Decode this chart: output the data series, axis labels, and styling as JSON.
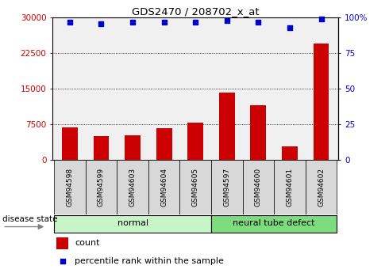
{
  "title": "GDS2470 / 208702_x_at",
  "samples": [
    "GSM94598",
    "GSM94599",
    "GSM94603",
    "GSM94604",
    "GSM94605",
    "GSM94597",
    "GSM94600",
    "GSM94601",
    "GSM94602"
  ],
  "counts": [
    6800,
    5000,
    5200,
    6600,
    7800,
    14200,
    11500,
    2800,
    24500
  ],
  "percentile_ranks": [
    97,
    96,
    97,
    97,
    97,
    98,
    97,
    93,
    99
  ],
  "groups": [
    "normal",
    "normal",
    "normal",
    "normal",
    "normal",
    "neural tube defect",
    "neural tube defect",
    "neural tube defect",
    "neural tube defect"
  ],
  "group_colors": [
    "#c8f5c8",
    "#7ddc7d"
  ],
  "bar_color": "#cc0000",
  "dot_color": "#0000cc",
  "left_ylim": [
    0,
    30000
  ],
  "right_ylim": [
    0,
    100
  ],
  "left_yticks": [
    0,
    7500,
    15000,
    22500,
    30000
  ],
  "right_yticks": [
    0,
    25,
    50,
    75,
    100
  ],
  "left_yticklabels": [
    "0",
    "7500",
    "15000",
    "22500",
    "30000"
  ],
  "right_yticklabels": [
    "0",
    "25",
    "50",
    "75",
    "100%"
  ],
  "grid_values": [
    7500,
    15000,
    22500
  ],
  "disease_state_label": "disease state",
  "legend_count_label": "count",
  "legend_percentile_label": "percentile rank within the sample",
  "bg_plot": "#f0f0f0",
  "bg_xtick": "#d8d8d8"
}
